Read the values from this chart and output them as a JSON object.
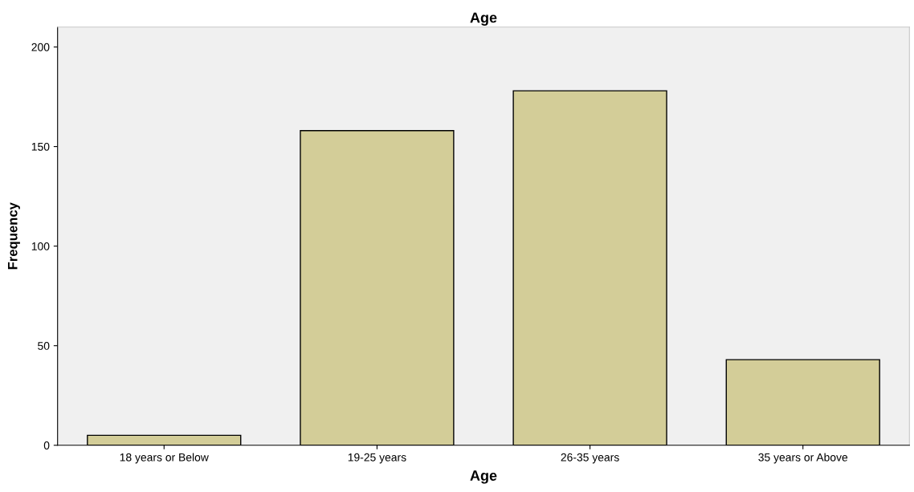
{
  "chart_data": {
    "type": "bar",
    "title": "Age",
    "xlabel": "Age",
    "ylabel": "Frequency",
    "categories": [
      "18 years or Below",
      "19-25 years",
      "26-35 years",
      "35 years or Above"
    ],
    "values": [
      5,
      158,
      178,
      43
    ],
    "color": "#d3cd98",
    "ylim": [
      0,
      210
    ],
    "yticks": [
      0,
      50,
      100,
      150,
      200
    ],
    "grid": false
  }
}
